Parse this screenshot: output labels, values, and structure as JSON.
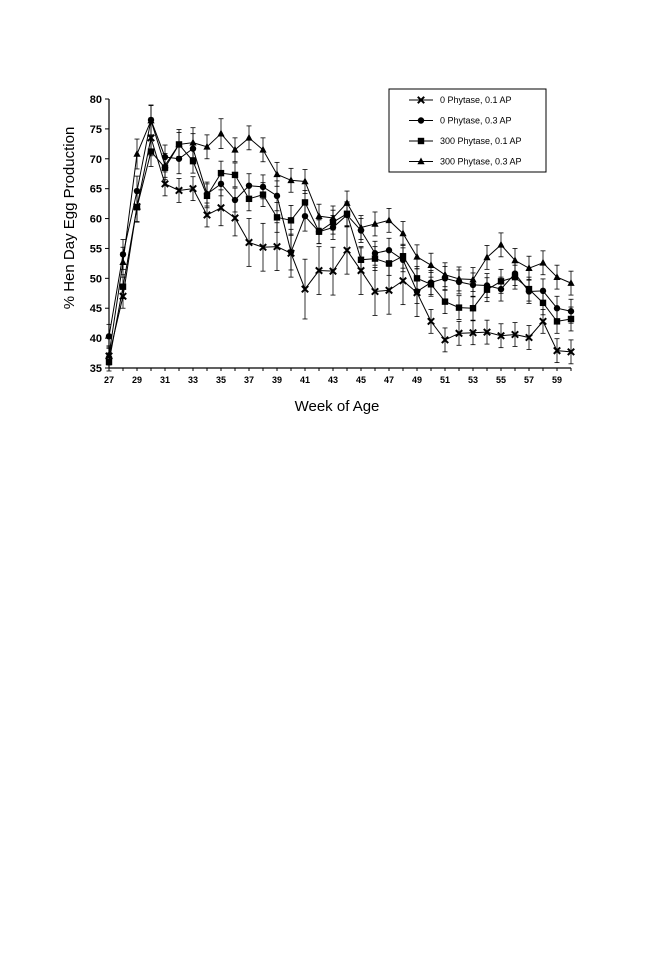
{
  "chart_data": {
    "type": "line",
    "xlabel": "Week of Age",
    "ylabel": "% Hen Day Egg Production",
    "xlim": [
      27,
      60
    ],
    "ylim": [
      35,
      80
    ],
    "x_ticks": [
      27,
      29,
      31,
      33,
      35,
      37,
      39,
      41,
      43,
      45,
      47,
      49,
      51,
      53,
      55,
      57,
      59
    ],
    "y_ticks": [
      35,
      40,
      45,
      50,
      55,
      60,
      65,
      70,
      75,
      80
    ],
    "grid": false,
    "legend_position": "top-right",
    "x": [
      27,
      28,
      29,
      30,
      31,
      32,
      33,
      34,
      35,
      36,
      37,
      38,
      39,
      40,
      41,
      42,
      43,
      44,
      45,
      46,
      47,
      48,
      49,
      50,
      51,
      52,
      53,
      54,
      55,
      56,
      57,
      58,
      59,
      60
    ],
    "series": [
      {
        "name": "0 Phytase, 0.1 AP",
        "marker": "x",
        "values": [
          37,
          47,
          62,
          73.5,
          65.8,
          64.7,
          65,
          60.6,
          61.8,
          60.1,
          56,
          55.2,
          55.3,
          54.2,
          48.2,
          51.3,
          51.2,
          54.7,
          51.3,
          47.8,
          48,
          49.6,
          47.6,
          42.8,
          39.7,
          40.8,
          40.9,
          41,
          40.4,
          40.6,
          40.1,
          42.8,
          37.9,
          37.7
        ],
        "errors": [
          1.5,
          2,
          2.5,
          3,
          2,
          2,
          2,
          2,
          3,
          3,
          4,
          4,
          4,
          4,
          5,
          4,
          4,
          4,
          4,
          4,
          4,
          4,
          4,
          2,
          2,
          2,
          2,
          2,
          2,
          2,
          2,
          2,
          2,
          2
        ]
      },
      {
        "name": "0 Phytase, 0.3 AP",
        "marker": "circle",
        "values": [
          40.3,
          54,
          64.6,
          76.5,
          70.3,
          70,
          71.7,
          64.1,
          65.8,
          63.1,
          65.5,
          65.3,
          63.8,
          54.4,
          60.4,
          57.8,
          58.5,
          60.6,
          58,
          54.2,
          54.7,
          53.1,
          47.8,
          49.3,
          50,
          49.4,
          48.9,
          48.8,
          48.2,
          50.8,
          47.8,
          47.9,
          45,
          44.5
        ],
        "errors": [
          2,
          2.5,
          2.5,
          2.5,
          2,
          2.5,
          2.5,
          2,
          2,
          2,
          2,
          2,
          2.5,
          3,
          2.5,
          2,
          2,
          2,
          2,
          2,
          2,
          2,
          2,
          2,
          2,
          2,
          2,
          2,
          2,
          2,
          2,
          2,
          2,
          2
        ]
      },
      {
        "name": "300 Phytase, 0.1 AP",
        "marker": "square",
        "values": [
          36,
          48.6,
          61.9,
          71.2,
          68.5,
          72.4,
          69.6,
          63.8,
          67.6,
          67.3,
          63.3,
          64,
          60.2,
          59.7,
          62.7,
          57.8,
          59.4,
          60.8,
          53.1,
          53.3,
          52.5,
          53.7,
          50,
          49,
          46.1,
          45.1,
          45,
          48.1,
          49.5,
          50.2,
          48.2,
          45.9,
          42.8,
          43.2
        ],
        "errors": [
          1.5,
          2,
          2.5,
          2.5,
          2,
          2,
          2,
          2,
          2,
          2,
          2,
          2,
          2.5,
          2.5,
          2,
          2,
          2,
          2,
          2,
          2,
          2,
          2,
          2,
          2,
          2,
          2,
          2,
          2,
          2,
          2,
          2,
          2,
          2,
          2
        ]
      },
      {
        "name": "300 Phytase, 0.3 AP",
        "marker": "triangle",
        "values": [
          37.2,
          52.7,
          70.8,
          76.4,
          68.9,
          72.4,
          72.7,
          72,
          74.2,
          71.5,
          73.5,
          71.5,
          67.4,
          66.4,
          66.2,
          60.4,
          60.1,
          62.6,
          58.5,
          59.1,
          59.7,
          57.5,
          53.6,
          52.2,
          50.6,
          49.9,
          49.8,
          53.5,
          55.6,
          53,
          51.7,
          52.6,
          50.2,
          49.2
        ],
        "errors": [
          1.5,
          2.5,
          2.5,
          2.5,
          2,
          2.5,
          2.5,
          2,
          2.5,
          2,
          2,
          2,
          2,
          2,
          2,
          2,
          2,
          2,
          2,
          2,
          2,
          2,
          2,
          2,
          2,
          2,
          2,
          2,
          2,
          2,
          2,
          2,
          2,
          2
        ]
      }
    ]
  }
}
